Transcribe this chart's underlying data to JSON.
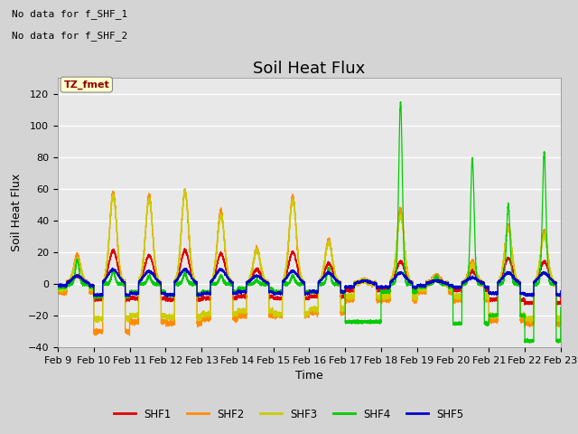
{
  "title": "Soil Heat Flux",
  "ylabel": "Soil Heat Flux",
  "xlabel": "Time",
  "ylim": [
    -40,
    130
  ],
  "yticks": [
    -40,
    -20,
    0,
    20,
    40,
    60,
    80,
    100,
    120
  ],
  "xtick_positions": [
    0,
    24,
    48,
    72,
    96,
    120,
    144,
    168,
    192,
    216,
    240,
    264,
    288,
    312,
    336
  ],
  "xtick_labels": [
    "Feb 9",
    "Feb 10",
    "Feb 11",
    "Feb 12",
    "Feb 13",
    "Feb 14",
    "Feb 15",
    "Feb 16",
    "Feb 17",
    "Feb 18",
    "Feb 19",
    "Feb 20",
    "Feb 21",
    "Feb 22",
    "Feb 23"
  ],
  "series_colors": [
    "#dd0000",
    "#ff8c00",
    "#cccc00",
    "#00cc00",
    "#0000cc"
  ],
  "series_names": [
    "SHF1",
    "SHF2",
    "SHF3",
    "SHF4",
    "SHF5"
  ],
  "no_data_text1": "No data for f_SHF_1",
  "no_data_text2": "No data for f_SHF_2",
  "tz_label": "TZ_fmet",
  "fig_facecolor": "#d4d4d4",
  "ax_facecolor": "#e8e8e8",
  "title_fontsize": 13,
  "label_fontsize": 9,
  "tick_fontsize": 8
}
